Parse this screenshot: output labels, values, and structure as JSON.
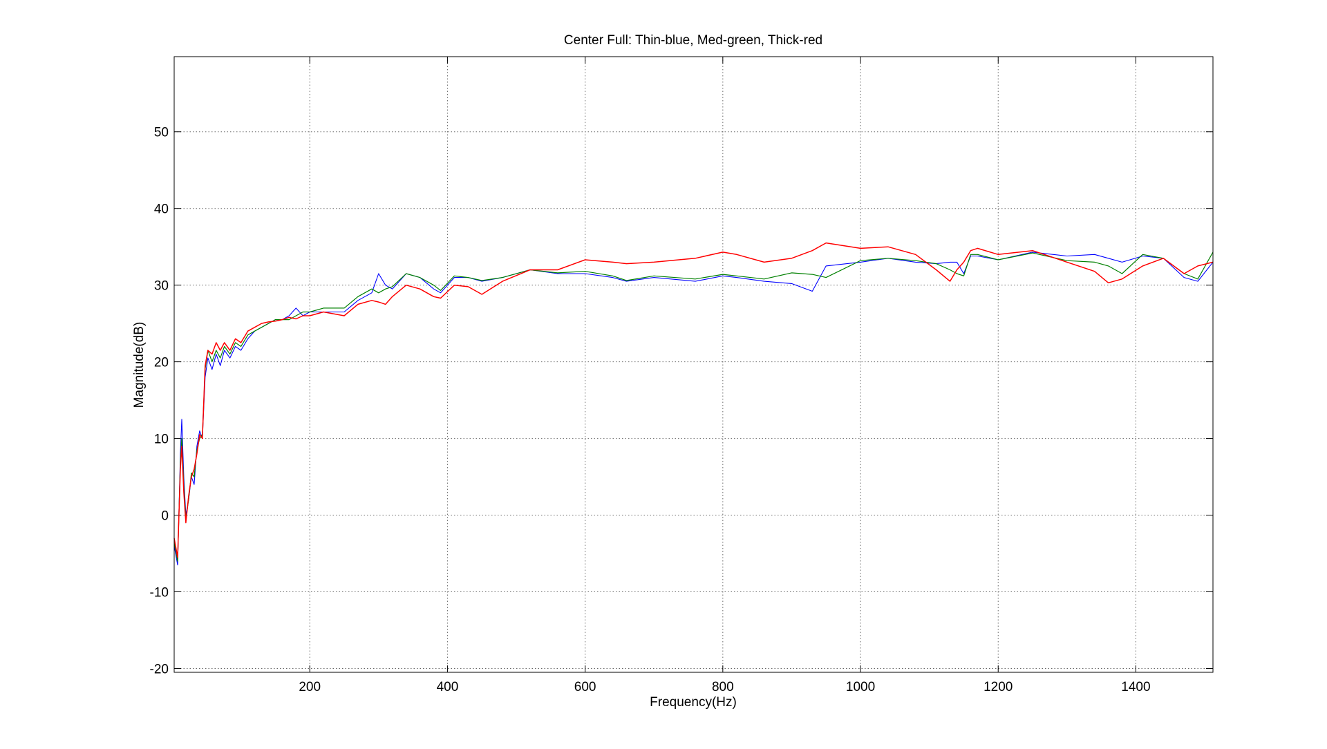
{
  "chart_data": {
    "type": "line",
    "title": "Center Full: Thin-blue, Med-green, Thick-red",
    "x_label": "Frequency(Hz)",
    "y_label": "Magnitude(dB)",
    "x": [
      3,
      8,
      12,
      14,
      17,
      20,
      24,
      28,
      32,
      36,
      40,
      44,
      48,
      52,
      58,
      64,
      70,
      76,
      84,
      92,
      100,
      110,
      120,
      130,
      140,
      150,
      160,
      170,
      180,
      190,
      200,
      220,
      250,
      270,
      290,
      300,
      310,
      320,
      340,
      360,
      380,
      390,
      410,
      430,
      450,
      480,
      520,
      560,
      600,
      640,
      660,
      700,
      760,
      800,
      820,
      860,
      900,
      930,
      950,
      1000,
      1040,
      1080,
      1110,
      1130,
      1140,
      1150,
      1160,
      1170,
      1200,
      1250,
      1300,
      1340,
      1360,
      1380,
      1410,
      1440,
      1470,
      1490,
      1512
    ],
    "series": [
      {
        "color": "#0000ff",
        "values": [
          -4,
          -6.5,
          8,
          12.5,
          5,
          0,
          2,
          5,
          4,
          9,
          11,
          10,
          18,
          20.5,
          19,
          21,
          19.5,
          21.5,
          20.5,
          22,
          21.5,
          23,
          24,
          24.5,
          25,
          25.5,
          25.5,
          26,
          27,
          26,
          26.5,
          26.5,
          26.5,
          28,
          29,
          31.5,
          30,
          29.5,
          31.5,
          31,
          29.5,
          29,
          31,
          31,
          30.5,
          31,
          32,
          31.5,
          31.5,
          31,
          30.5,
          31,
          30.5,
          31.2,
          31,
          30.5,
          30.2,
          29.2,
          32.5,
          33,
          33.5,
          33,
          32.8,
          33,
          33,
          31.5,
          33.8,
          33.8,
          33.3,
          34.3,
          33.8,
          34,
          33.5,
          33,
          33.8,
          33.5,
          31,
          30.5,
          33
        ]
      },
      {
        "color": "#008000",
        "values": [
          -3.5,
          -6,
          7,
          10,
          4,
          -0.5,
          2,
          5.5,
          5,
          8.5,
          10,
          10.5,
          19,
          21.5,
          20,
          21.5,
          20.5,
          22,
          21,
          22.5,
          22,
          23.5,
          24,
          24.5,
          25,
          25.5,
          25.5,
          25.5,
          26,
          26.5,
          26.5,
          27,
          27,
          28.5,
          29.5,
          29,
          29.5,
          29.8,
          31.5,
          31,
          30,
          29.3,
          31.2,
          31,
          30.6,
          31,
          32,
          31.6,
          31.8,
          31.2,
          30.6,
          31.2,
          30.8,
          31.4,
          31.2,
          30.8,
          31.6,
          31.4,
          31,
          33.2,
          33.5,
          33.2,
          32.8,
          32,
          31.5,
          31.2,
          34,
          34,
          33.3,
          34.2,
          33.2,
          33,
          32.5,
          31.5,
          34,
          33.5,
          31.5,
          30.8,
          34.3
        ]
      },
      {
        "color": "#ff0000",
        "values": [
          -3,
          -5.5,
          6,
          9,
          3,
          -1,
          2.5,
          5,
          6,
          8,
          10.5,
          10,
          19.5,
          21.5,
          21,
          22.5,
          21.5,
          22.5,
          21.5,
          23,
          22.5,
          24,
          24.5,
          25,
          25.2,
          25.3,
          25.5,
          25.8,
          25.6,
          26,
          26,
          26.5,
          26,
          27.5,
          28,
          27.8,
          27.5,
          28.5,
          30,
          29.5,
          28.5,
          28.3,
          30,
          29.8,
          28.8,
          30.5,
          32,
          32,
          33.3,
          33,
          32.8,
          33,
          33.5,
          34.3,
          34,
          33,
          33.5,
          34.5,
          35.5,
          34.8,
          35,
          34,
          32,
          30.5,
          32,
          33,
          34.5,
          34.8,
          34,
          34.5,
          33,
          31.8,
          30.3,
          30.8,
          32.5,
          33.5,
          31.5,
          32.5,
          33
        ]
      }
    ],
    "xlim": [
      3,
      1512
    ],
    "ylim": [
      -20.5,
      59.8
    ],
    "xticks": [
      200,
      400,
      600,
      800,
      1000,
      1200,
      1400
    ],
    "yticks": [
      -20,
      -10,
      0,
      10,
      20,
      30,
      40,
      50
    ],
    "grid": true
  }
}
